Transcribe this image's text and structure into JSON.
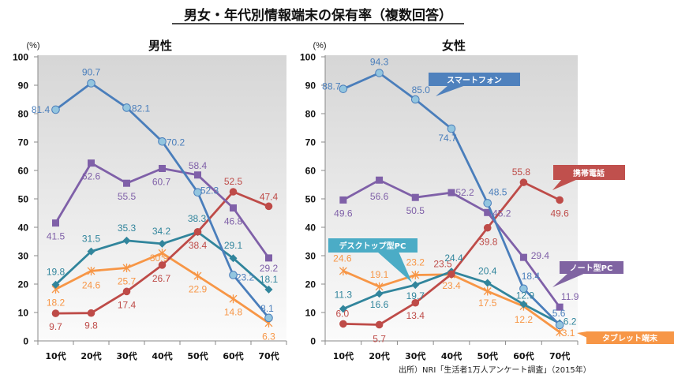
{
  "title": "男女・年代別情報端末の保有率（複数回答）",
  "source": "出所）NRI「生活者1万人アンケート調査」（2015年）",
  "chart_data": [
    {
      "type": "line",
      "title": "男性",
      "xlabel": "",
      "ylabel": "(%)",
      "categories": [
        "10代",
        "20代",
        "30代",
        "40代",
        "50代",
        "60代",
        "70代"
      ],
      "ylim": [
        0,
        100
      ],
      "yticks": [
        0,
        10,
        20,
        30,
        40,
        50,
        60,
        70,
        80,
        90,
        100
      ],
      "grid": false,
      "legend": "none",
      "series": [
        {
          "name": "スマートフォン",
          "color": "#4A7EBB",
          "marker": "circle-light",
          "values": [
            81.4,
            90.7,
            82.1,
            70.2,
            52.3,
            23.2,
            8.1
          ],
          "data_labels": [
            "81.4",
            "90.7",
            "82.1",
            "70.2",
            "52.3",
            "23.2",
            "8.1"
          ]
        },
        {
          "name": "ノート型PC",
          "color": "#7F60A8",
          "marker": "square",
          "values": [
            41.5,
            62.6,
            55.5,
            60.7,
            58.4,
            46.8,
            29.2
          ],
          "data_labels": [
            "41.5",
            "62.6",
            "55.5",
            "60.7",
            "58.4",
            "46.8",
            "29.2"
          ]
        },
        {
          "name": "携帯電話",
          "color": "#BE4B48",
          "marker": "circle",
          "values": [
            9.7,
            9.8,
            17.4,
            26.7,
            38.4,
            52.5,
            47.4
          ],
          "data_labels": [
            "9.7",
            "9.8",
            "17.4",
            "26.7",
            "38.4",
            "52.5",
            "47.4"
          ]
        },
        {
          "name": "デスクトップ型PC",
          "color": "#31859C",
          "marker": "diamond",
          "values": [
            19.8,
            31.5,
            35.3,
            34.2,
            38.3,
            29.1,
            18.1
          ],
          "data_labels": [
            "19.8",
            "31.5",
            "35.3",
            "34.2",
            "38.3",
            "29.1",
            "18.1"
          ]
        },
        {
          "name": "タブレット端末",
          "color": "#F79646",
          "marker": "star",
          "values": [
            18.2,
            24.6,
            25.7,
            30.9,
            22.9,
            14.8,
            6.3
          ],
          "data_labels": [
            "18.2",
            "24.6",
            "25.7",
            "30.9",
            "22.9",
            "14.8",
            "6.3"
          ]
        }
      ]
    },
    {
      "type": "line",
      "title": "女性",
      "xlabel": "",
      "ylabel": "(%)",
      "categories": [
        "10代",
        "20代",
        "30代",
        "40代",
        "50代",
        "60代",
        "70代"
      ],
      "ylim": [
        0,
        100
      ],
      "yticks": [
        0,
        10,
        20,
        30,
        40,
        50,
        60,
        70,
        80,
        90,
        100
      ],
      "grid": false,
      "legend": "callouts",
      "series": [
        {
          "name": "スマートフォン",
          "color": "#4A7EBB",
          "marker": "circle-light",
          "values": [
            88.7,
            94.3,
            85.0,
            74.7,
            48.5,
            18.4,
            5.6
          ],
          "data_labels": [
            "88.7",
            "94.3",
            "85.0",
            "74.7",
            "48.5",
            "18.4",
            "5.6"
          ]
        },
        {
          "name": "ノート型PC",
          "color": "#7F60A8",
          "marker": "square",
          "values": [
            49.6,
            56.6,
            50.5,
            52.2,
            45.2,
            29.4,
            11.9
          ],
          "data_labels": [
            "49.6",
            "56.6",
            "50.5",
            "52.2",
            "45.2",
            "29.4",
            "11.9"
          ]
        },
        {
          "name": "携帯電話",
          "color": "#BE4B48",
          "marker": "circle",
          "values": [
            6.0,
            5.7,
            13.4,
            23.5,
            39.8,
            55.8,
            49.6
          ],
          "data_labels": [
            "6.0",
            "5.7",
            "13.4",
            "23.5",
            "39.8",
            "55.8",
            "49.6"
          ]
        },
        {
          "name": "デスクトップ型PC",
          "color": "#31859C",
          "marker": "diamond",
          "values": [
            11.3,
            16.6,
            19.7,
            24.4,
            20.4,
            12.9,
            6.2
          ],
          "data_labels": [
            "11.3",
            "16.6",
            "19.7",
            "24.4",
            "20.4",
            "12.9",
            "6.2"
          ]
        },
        {
          "name": "タブレット端末",
          "color": "#F79646",
          "marker": "star",
          "values": [
            24.6,
            19.1,
            23.2,
            23.4,
            17.5,
            12.2,
            3.1
          ],
          "data_labels": [
            "24.6",
            "19.1",
            "23.2",
            "23.4",
            "17.5",
            "12.2",
            "3.1"
          ]
        }
      ]
    }
  ],
  "callouts": [
    {
      "text": "スマートフォン",
      "color": "#4F81BD"
    },
    {
      "text": "携帯電話",
      "color": "#C0504D"
    },
    {
      "text": "デスクトップ型PC",
      "color": "#4BACC6"
    },
    {
      "text": "ノート型PC",
      "color": "#8064A2"
    },
    {
      "text": "タブレット端末",
      "color": "#F79646"
    }
  ]
}
